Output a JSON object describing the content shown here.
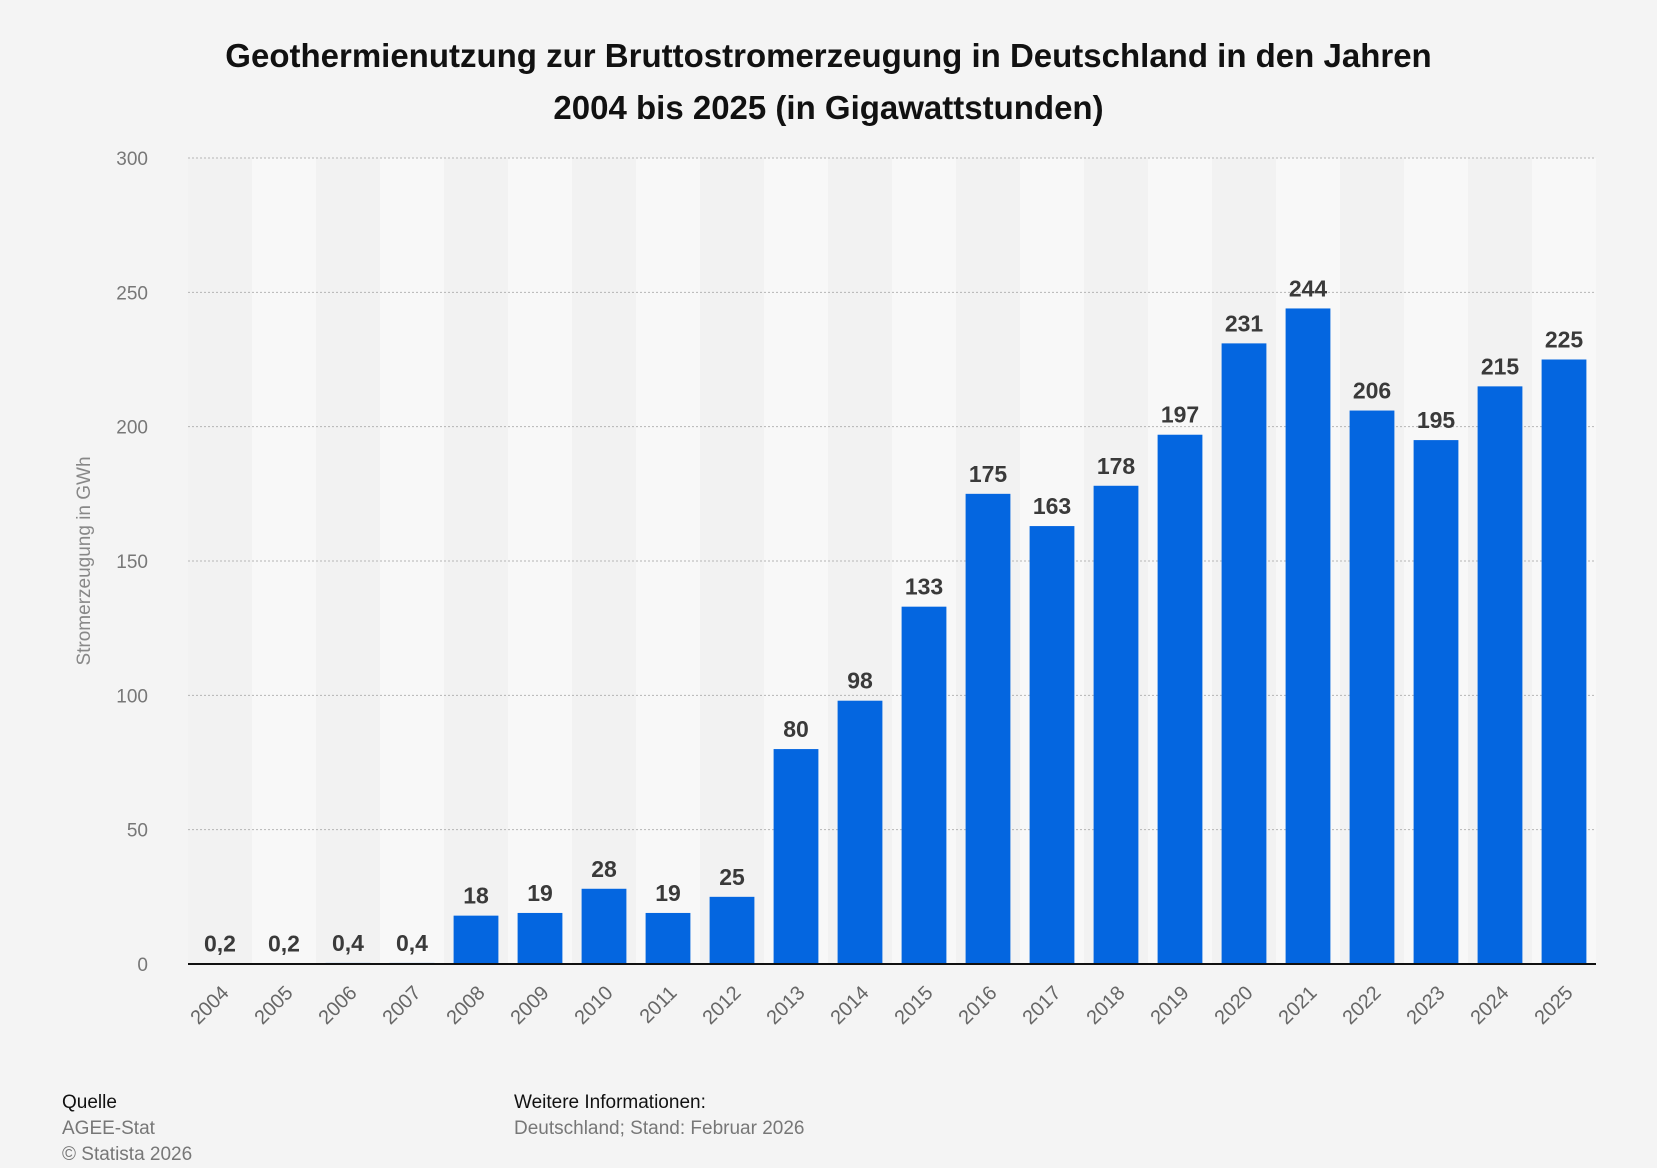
{
  "chart_data": {
    "type": "bar",
    "title_lines": [
      "Geothermienutzung zur Bruttostromerzeugung in Deutschland in den Jahren",
      "2004 bis 2025 (in Gigawattstunden)"
    ],
    "ylabel": "Stromerzeugung in GWh",
    "xlabel": "",
    "ylim": [
      0,
      300
    ],
    "yticks": [
      0,
      50,
      100,
      150,
      200,
      250,
      300
    ],
    "grid": true,
    "categories": [
      "2004",
      "2005",
      "2006",
      "2007",
      "2008",
      "2009",
      "2010",
      "2011",
      "2012",
      "2013",
      "2014",
      "2015",
      "2016",
      "2017",
      "2018",
      "2019",
      "2020",
      "2021",
      "2022",
      "2023",
      "2024",
      "2025"
    ],
    "values": [
      0.2,
      0.2,
      0.4,
      0.4,
      18,
      19,
      28,
      19,
      25,
      80,
      98,
      133,
      175,
      163,
      178,
      197,
      231,
      244,
      206,
      195,
      215,
      225
    ],
    "value_labels": [
      "0,2",
      "0,2",
      "0,4",
      "0,4",
      "18",
      "19",
      "28",
      "19",
      "25",
      "80",
      "98",
      "133",
      "175",
      "163",
      "178",
      "197",
      "231",
      "244",
      "206",
      "195",
      "215",
      "225"
    ],
    "bar_color": "#0466e0"
  },
  "footer": {
    "source_heading": "Quelle",
    "source_name": "AGEE-Stat",
    "copyright": "© Statista 2026",
    "info_heading": "Weitere Informationen:",
    "info_text": "Deutschland; Stand: Februar 2026"
  }
}
